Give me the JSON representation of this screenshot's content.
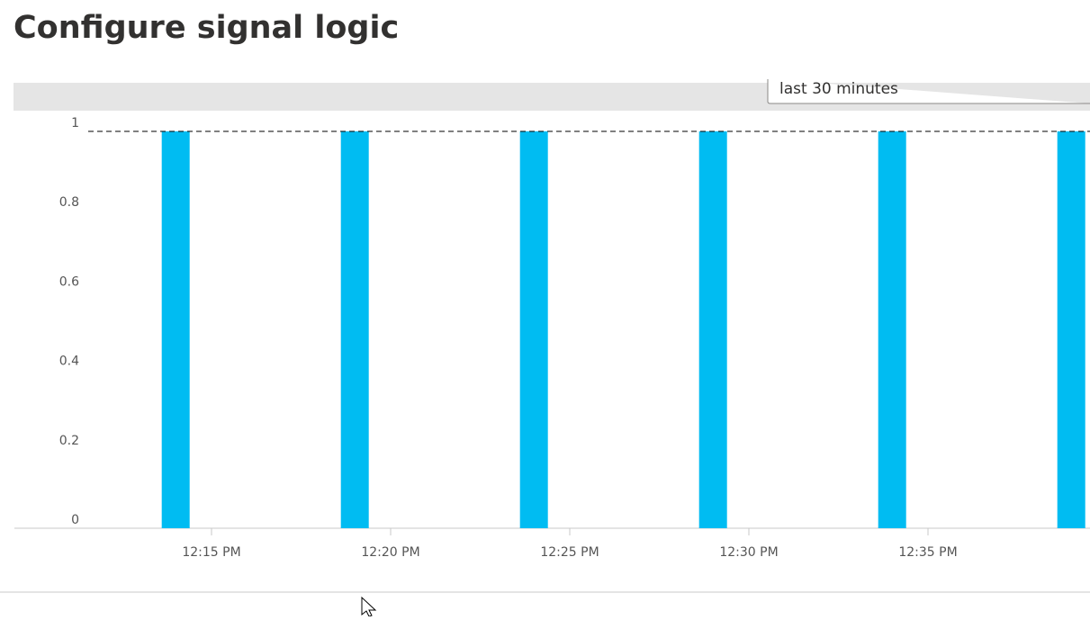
{
  "header": {
    "title": "Configure signal logic"
  },
  "time_range": "last 30 minutes",
  "chart_data": {
    "type": "bar",
    "x": [
      "12:14 PM",
      "12:19 PM",
      "12:24 PM",
      "12:29 PM",
      "12:34 PM",
      "12:39 PM"
    ],
    "values": [
      1,
      1,
      1,
      1,
      1,
      1
    ],
    "color": "#00bcf2",
    "xlim": [
      "12:10 PM",
      "12:40 PM"
    ],
    "xticks": [
      "12:15 PM",
      "12:20 PM",
      "12:25 PM",
      "12:30 PM",
      "12:35 PM"
    ],
    "ylim": [
      0,
      1
    ],
    "yticks": [
      0,
      0.2,
      0.4,
      0.6,
      0.8,
      1
    ],
    "threshold": 1
  }
}
